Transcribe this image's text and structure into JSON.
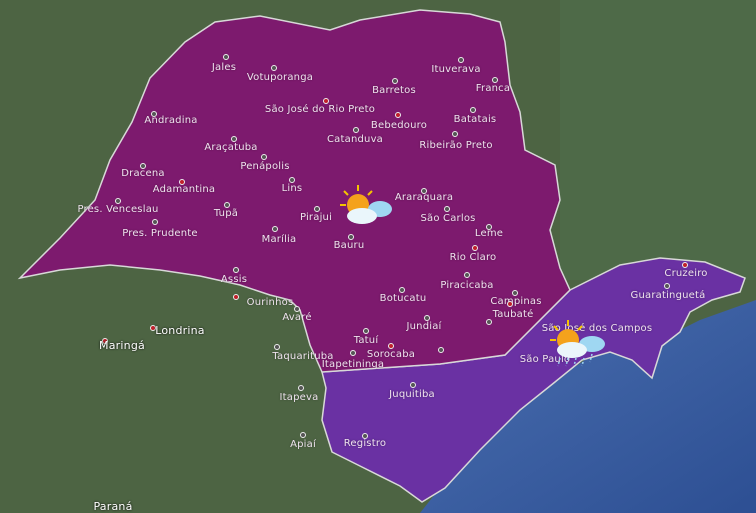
{
  "colors": {
    "region_north": "#7d1a6e",
    "region_southeast": "#6a31a3",
    "land": "#4d6443",
    "ocean": "#3b5ea6"
  },
  "cities": [
    {
      "name": "Jales"
    },
    {
      "name": "Votuporanga"
    },
    {
      "name": "São José do Rio Preto"
    },
    {
      "name": "Andradina"
    },
    {
      "name": "Araçatuba"
    },
    {
      "name": "Penápolis"
    },
    {
      "name": "Dracena"
    },
    {
      "name": "Adamantina"
    },
    {
      "name": "Lins"
    },
    {
      "name": "Pres. Venceslau"
    },
    {
      "name": "Tupã"
    },
    {
      "name": "Pirajui"
    },
    {
      "name": "Pres. Prudente"
    },
    {
      "name": "Marília"
    },
    {
      "name": "Bauru"
    },
    {
      "name": "Assis"
    },
    {
      "name": "Ituverava"
    },
    {
      "name": "Franca"
    },
    {
      "name": "Barretos"
    },
    {
      "name": "Bebedouro"
    },
    {
      "name": "Batatais"
    },
    {
      "name": "Catanduva"
    },
    {
      "name": "Ribeirão Preto"
    },
    {
      "name": "Araraquara"
    },
    {
      "name": "São Carlos"
    },
    {
      "name": "Leme"
    },
    {
      "name": "Rio Claro"
    },
    {
      "name": "Piracicaba"
    },
    {
      "name": "Botucatu"
    },
    {
      "name": "Campinas"
    },
    {
      "name": "Cruzeiro"
    },
    {
      "name": "Guaratinguetá"
    },
    {
      "name": "Ourinhos"
    },
    {
      "name": "Avaré"
    },
    {
      "name": "Jundiaí"
    },
    {
      "name": "Taubaté"
    },
    {
      "name": "São José dos Campos"
    },
    {
      "name": "Tatuí"
    },
    {
      "name": "Sorocaba"
    },
    {
      "name": "Taquarituba"
    },
    {
      "name": "Itapetininga"
    },
    {
      "name": "São Paulo"
    },
    {
      "name": "Itapeva"
    },
    {
      "name": "Juquitiba"
    },
    {
      "name": "Apiaí"
    },
    {
      "name": "Registro"
    }
  ],
  "outside_labels": [
    {
      "name": "Londrina"
    },
    {
      "name": "Maringá"
    },
    {
      "name": "Paraná"
    }
  ],
  "weather": [
    {
      "region": "north",
      "icon": "partly-cloudy-icon"
    },
    {
      "region": "southeast",
      "icon": "partly-cloudy-rain-icon"
    }
  ]
}
